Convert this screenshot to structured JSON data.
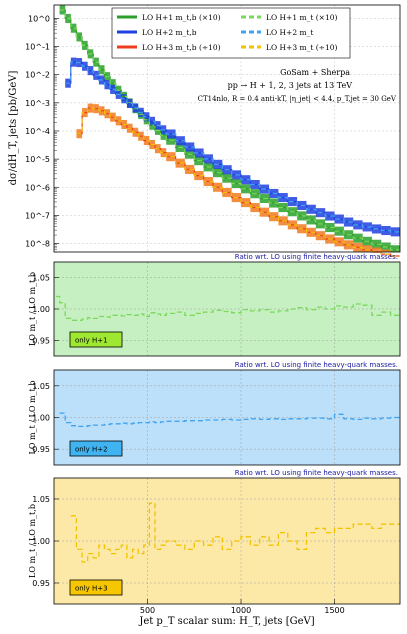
{
  "chart_data": [
    {
      "type": "line",
      "panel": "main",
      "ylabel": "dσ/dH_T, jets [pb/GeV]",
      "yscale": "log",
      "ylim": [
        5e-09,
        3
      ],
      "xlim": [
        0,
        1850
      ],
      "y_ticks": [
        "10^0",
        "10^-1",
        "10^-2",
        "10^-3",
        "10^-4",
        "10^-5",
        "10^-6",
        "10^-7",
        "10^-8"
      ],
      "grid": true,
      "legend": [
        {
          "label": "LO H+1 m_t,b (×10)",
          "color": "#2aa02a",
          "style": "solid"
        },
        {
          "label": "LO H+2 m_t,b",
          "color": "#1f3fe0",
          "style": "solid"
        },
        {
          "label": "LO H+3 m_t,b (÷10)",
          "color": "#f03c1e",
          "style": "solid"
        },
        {
          "label": "LO H+1 m_t (×10)",
          "color": "#7ad85a",
          "style": "dashed"
        },
        {
          "label": "LO H+2 m_t",
          "color": "#3fa3f0",
          "style": "dashed"
        },
        {
          "label": "LO H+3 m_t (÷10)",
          "color": "#f2c200",
          "style": "dashed"
        }
      ],
      "annotations": [
        "GoSam + Sherpa",
        "pp → H + 1, 2, 3 jets at 13 TeV",
        "CT14nlo, R = 0.4 anti-kT, |η_jet| < 4.4, p_T,jet = 30 GeV"
      ],
      "x": [
        30,
        60,
        90,
        120,
        150,
        180,
        210,
        240,
        270,
        300,
        330,
        360,
        390,
        420,
        450,
        480,
        510,
        540,
        570,
        600,
        650,
        700,
        750,
        800,
        850,
        900,
        950,
        1000,
        1050,
        1100,
        1150,
        1200,
        1250,
        1300,
        1350,
        1400,
        1450,
        1500,
        1550,
        1600,
        1650,
        1700,
        1750,
        1800,
        1850
      ],
      "series": [
        {
          "name": "LO H+1 m_t,b (×10)",
          "color": "#2aa02a",
          "band": "#2aa02a",
          "values": [
            2.0,
            1.0,
            0.45,
            0.22,
            0.11,
            0.055,
            0.028,
            0.015,
            0.0085,
            0.0048,
            0.0028,
            0.0017,
            0.001,
            0.00062,
            0.00039,
            0.00025,
            0.00016,
            0.000105,
            7e-05,
            4.7e-05,
            2.6e-05,
            1.5e-05,
            8.8e-06,
            5.3e-06,
            3.3e-06,
            2.1e-06,
            1.35e-06,
            8.8e-07,
            5.9e-07,
            4e-07,
            2.75e-07,
            1.9e-07,
            1.35e-07,
            9.6e-08,
            6.9e-08,
            5e-08,
            3.7e-08,
            2.75e-08,
            2.05e-08,
            1.55e-08,
            1.2e-08,
            9.4e-09,
            7.5e-09,
            6e-09,
            5e-09
          ]
        },
        {
          "name": "LO H+2 m_t,b",
          "color": "#1f3fe0",
          "band": "#1f3fe0",
          "values": [
            null,
            0.005,
            0.028,
            0.027,
            0.02,
            0.014,
            0.0095,
            0.0065,
            0.0044,
            0.003,
            0.002,
            0.0014,
            0.00095,
            0.00066,
            0.00046,
            0.00032,
            0.00022,
            0.000155,
            0.00011,
            7.8e-05,
            4.5e-05,
            2.7e-05,
            1.65e-05,
            1.02e-05,
            6.5e-06,
            4.2e-06,
            2.75e-06,
            1.85e-06,
            1.25e-06,
            8.6e-07,
            6e-07,
            4.3e-07,
            3.1e-07,
            2.25e-07,
            1.65e-07,
            1.25e-07,
            9.5e-08,
            7.4e-08,
            5.8e-08,
            4.6e-08,
            3.9e-08,
            3.3e-08,
            2.9e-08,
            2.6e-08,
            2.4e-08
          ]
        },
        {
          "name": "LO H+3 m_t,b (÷10)",
          "color": "#f03c1e",
          "band": "#f07a1e",
          "values": [
            null,
            null,
            null,
            8e-05,
            0.00045,
            0.00065,
            0.00062,
            0.00052,
            0.00041,
            0.00031,
            0.00023,
            0.00017,
            0.000125,
            9e-05,
            6.5e-05,
            4.6e-05,
            3.3e-05,
            2.35e-05,
            1.7e-05,
            1.22e-05,
            7.2e-06,
            4.3e-06,
            2.6e-06,
            1.6e-06,
            1e-06,
            6.5e-07,
            4.3e-07,
            2.85e-07,
            1.9e-07,
            1.3e-07,
            9e-08,
            6.4e-08,
            4.6e-08,
            3.35e-08,
            2.5e-08,
            1.9e-08,
            1.45e-08,
            1.15e-08,
            9e-09,
            7.3e-09,
            6e-09,
            5e-09,
            4.2e-09,
            3.6e-09,
            3.2e-09
          ]
        }
      ]
    },
    {
      "type": "line",
      "panel": "ratio1",
      "title": "Ratio wrt. LO using finite heavy-quark masses.",
      "ylabel": "LO m_t / LO m_t,b",
      "ylim": [
        0.925,
        1.075
      ],
      "y_ticks": [
        "0.95",
        "1.00",
        "1.05"
      ],
      "badge": "only H+1",
      "fill": "#c6f0c1",
      "badge_fill": "#9ee831",
      "line_color": "#7ad85a",
      "x": [
        10,
        30,
        60,
        90,
        120,
        150,
        180,
        210,
        240,
        270,
        300,
        330,
        360,
        390,
        420,
        450,
        480,
        510,
        540,
        570,
        600,
        650,
        700,
        750,
        800,
        850,
        900,
        950,
        1000,
        1050,
        1100,
        1150,
        1200,
        1250,
        1300,
        1350,
        1400,
        1450,
        1500,
        1550,
        1600,
        1650,
        1700,
        1750,
        1800,
        1850
      ],
      "values": [
        1.02,
        1.01,
        0.985,
        0.982,
        0.982,
        0.984,
        0.986,
        0.985,
        0.988,
        0.987,
        0.99,
        0.99,
        0.989,
        0.991,
        0.99,
        0.992,
        0.988,
        0.994,
        0.992,
        0.99,
        0.993,
        0.995,
        0.99,
        0.993,
        0.995,
        0.998,
        0.996,
        0.994,
        0.999,
        0.997,
        0.999,
        0.995,
        0.997,
        1.0,
        1.002,
        0.999,
        1.003,
        1.0,
        1.005,
        1.003,
        1.008,
        1.006,
        0.99,
        0.995,
        0.99,
        0.99
      ]
    },
    {
      "type": "line",
      "panel": "ratio2",
      "title": "Ratio wrt. LO using finite heavy-quark masses.",
      "ylabel": "LO m_t / LO m_t,b",
      "ylim": [
        0.925,
        1.075
      ],
      "y_ticks": [
        "0.95",
        "1.00",
        "1.05"
      ],
      "badge": "only H+2",
      "fill": "#bcdffa",
      "badge_fill": "#3fb4f0",
      "line_color": "#3fa3f0",
      "x": [
        30,
        60,
        90,
        120,
        150,
        180,
        210,
        240,
        270,
        300,
        330,
        360,
        390,
        420,
        450,
        480,
        510,
        540,
        570,
        600,
        650,
        700,
        750,
        800,
        850,
        900,
        950,
        1000,
        1050,
        1100,
        1150,
        1200,
        1250,
        1300,
        1350,
        1400,
        1450,
        1500,
        1550,
        1600,
        1650,
        1700,
        1750,
        1800,
        1850
      ],
      "values": [
        1.007,
        0.992,
        0.987,
        0.986,
        0.986,
        0.987,
        0.988,
        0.988,
        0.989,
        0.99,
        0.99,
        0.991,
        0.99,
        0.991,
        0.992,
        0.992,
        0.993,
        0.992,
        0.993,
        0.994,
        0.994,
        0.995,
        0.995,
        0.996,
        0.996,
        0.997,
        0.996,
        0.997,
        0.998,
        0.997,
        0.998,
        0.997,
        0.998,
        0.998,
        0.999,
        0.999,
        0.998,
        1.005,
        0.998,
        0.997,
        0.999,
        0.998,
        0.999,
        1.0,
        1.0
      ]
    },
    {
      "type": "line",
      "panel": "ratio3",
      "title": "Ratio wrt. LO using finite heavy-quark masses.",
      "ylabel": "LO m_t / LO m_t,b",
      "xlabel": "Jet p_T scalar sum: H_T, jets [GeV]",
      "ylim": [
        0.925,
        1.075
      ],
      "y_ticks": [
        "0.95",
        "1.00",
        "1.05"
      ],
      "x_ticks": [
        "500",
        "1000",
        "1500"
      ],
      "badge": "only H+3",
      "fill": "#fce9a8",
      "badge_fill": "#f6c700",
      "line_color": "#f2c200",
      "x": [
        90,
        120,
        150,
        180,
        210,
        240,
        270,
        300,
        330,
        360,
        390,
        420,
        450,
        480,
        510,
        540,
        570,
        600,
        650,
        700,
        750,
        800,
        850,
        900,
        950,
        1000,
        1050,
        1100,
        1150,
        1200,
        1250,
        1300,
        1350,
        1400,
        1450,
        1500,
        1550,
        1600,
        1650,
        1700,
        1750,
        1800,
        1850
      ],
      "values": [
        1.03,
        0.99,
        0.975,
        0.985,
        0.98,
        0.995,
        0.99,
        0.985,
        0.99,
        0.995,
        0.98,
        0.99,
        0.985,
        0.995,
        1.045,
        0.99,
        0.995,
        1.0,
        0.995,
        0.99,
        1.0,
        0.995,
        1.005,
        0.99,
        1.0,
        1.005,
        0.995,
        1.005,
        0.995,
        1.01,
        1.0,
        0.99,
        1.01,
        1.015,
        1.01,
        1.015,
        1.015,
        1.02,
        1.02,
        1.015,
        1.02,
        1.02,
        1.02
      ]
    }
  ]
}
